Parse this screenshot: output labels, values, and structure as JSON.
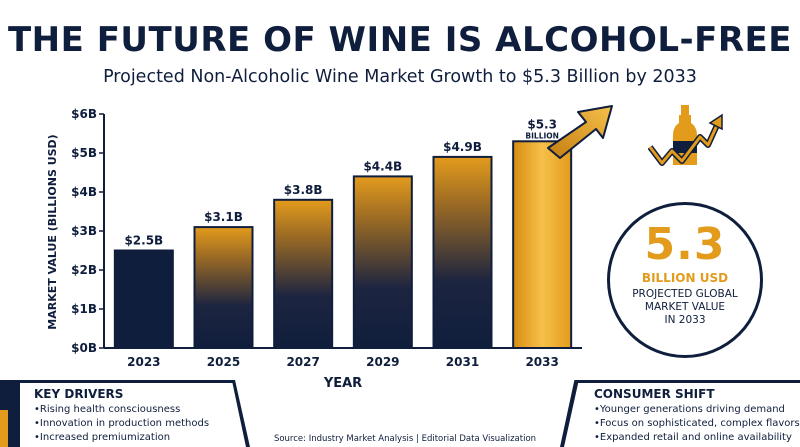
{
  "header": {
    "title": "THE FUTURE OF WINE IS ALCOHOL-FREE",
    "subtitle": "Projected Non-Alcoholic Wine Market Growth to $5.3 Billion by 2033"
  },
  "chart_data": {
    "type": "bar",
    "categories": [
      "2023",
      "2025",
      "2027",
      "2029",
      "2031",
      "2033"
    ],
    "values": [
      2.5,
      3.1,
      3.8,
      4.4,
      4.9,
      5.3
    ],
    "data_labels": [
      "$2.5B",
      "$3.1B",
      "$3.8B",
      "$4.4B",
      "$4.9B",
      "$5.3"
    ],
    "last_label_sub": "BILLION",
    "xlabel": "YEAR",
    "ylabel": "MARKET VALUE (BILLIONS USD)",
    "ylim": [
      0,
      6
    ],
    "yticks": [
      0,
      1,
      2,
      3,
      4,
      5,
      6
    ],
    "ytick_labels": [
      "$0B",
      "$1B",
      "$2B",
      "$3B",
      "$4B",
      "$5B",
      "$6B"
    ],
    "grid": false,
    "colors": {
      "navy": "#0f1e3c",
      "gold": "#e39b1c",
      "highlight": "#f0b429"
    }
  },
  "icons": {
    "growth": "wine-bottle-growth-arrow-icon",
    "arrow": "trend-arrow-icon"
  },
  "stat": {
    "value": "5.3",
    "unit": "BILLION USD",
    "description": "PROJECTED GLOBAL\nMARKET VALUE\nIN 2033"
  },
  "key_drivers": {
    "title": "KEY DRIVERS",
    "items": [
      "Rising health consciousness",
      "Innovation in production methods",
      "Increased premiumization"
    ]
  },
  "consumer_shift": {
    "title": "CONSUMER SHIFT",
    "items": [
      "Younger generations driving demand",
      "Focus on sophisticated, complex flavors",
      "Expanded retail and online availability"
    ]
  },
  "source": "Source: Industry Market Analysis | Editorial Data Visualization"
}
